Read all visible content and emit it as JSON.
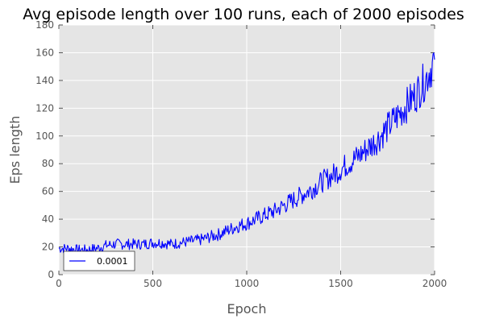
{
  "chart_data": {
    "type": "line",
    "title": "Avg episode length over 100 runs, each of 2000 episodes",
    "xlabel": "Epoch",
    "ylabel": "Eps length",
    "xlim": [
      0,
      2000
    ],
    "ylim": [
      0,
      180
    ],
    "xticks": [
      0,
      500,
      1000,
      1500,
      2000
    ],
    "yticks": [
      0,
      20,
      40,
      60,
      80,
      100,
      120,
      140,
      160,
      180
    ],
    "grid": true,
    "legend_position": "lower-left",
    "series": [
      {
        "name": "0.0001",
        "color": "#0000ff",
        "x": [
          0,
          50,
          100,
          150,
          200,
          250,
          300,
          350,
          400,
          450,
          500,
          550,
          600,
          650,
          700,
          750,
          800,
          850,
          900,
          950,
          1000,
          1050,
          1100,
          1150,
          1200,
          1250,
          1300,
          1350,
          1400,
          1450,
          1500,
          1550,
          1600,
          1650,
          1700,
          1750,
          1800,
          1850,
          1900,
          1950,
          2000
        ],
        "y": [
          19,
          19,
          18,
          18,
          19,
          21,
          22,
          22,
          22,
          22,
          23,
          23,
          22,
          23,
          24,
          25,
          27,
          29,
          32,
          35,
          37,
          40,
          43,
          46,
          50,
          54,
          58,
          62,
          67,
          71,
          76,
          81,
          86,
          92,
          98,
          106,
          114,
          122,
          130,
          140,
          155
        ]
      }
    ]
  }
}
